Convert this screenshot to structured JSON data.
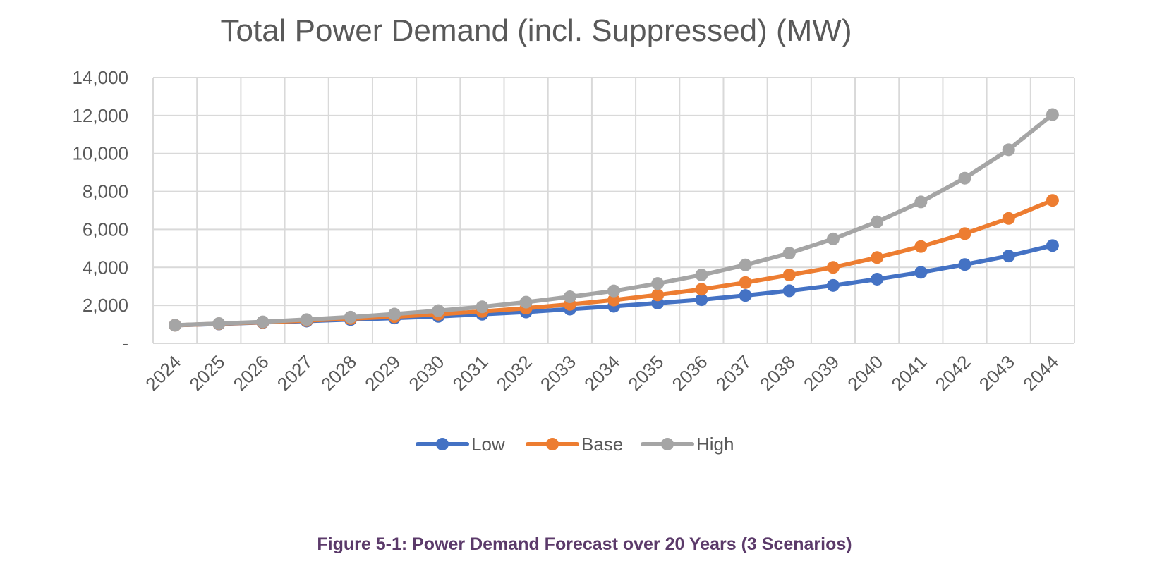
{
  "caption": "Figure 5-1: Power Demand Forecast over 20 Years (3 Scenarios)",
  "chart_data": {
    "type": "line",
    "title": "Total Power Demand (incl. Suppressed) (MW)",
    "xlabel": "",
    "ylabel": "",
    "categories": [
      "2024",
      "2025",
      "2026",
      "2027",
      "2028",
      "2029",
      "2030",
      "2031",
      "2032",
      "2033",
      "2034",
      "2035",
      "2036",
      "2037",
      "2038",
      "2039",
      "2040",
      "2041",
      "2042",
      "2043",
      "2044"
    ],
    "ylim": [
      0,
      14000
    ],
    "y_ticks": [
      0,
      2000,
      4000,
      6000,
      8000,
      10000,
      12000,
      14000
    ],
    "y_tick_labels": [
      "-",
      "2,000",
      "4,000",
      "6,000",
      "8,000",
      "10,000",
      "12,000",
      "14,000"
    ],
    "grid": true,
    "legend_position": "bottom",
    "series": [
      {
        "name": "Low",
        "color": "#4472C4",
        "values": [
          950,
          1020,
          1100,
          1170,
          1250,
          1330,
          1420,
          1530,
          1650,
          1800,
          1950,
          2120,
          2300,
          2520,
          2770,
          3050,
          3380,
          3740,
          4150,
          4600,
          5150
        ]
      },
      {
        "name": "Base",
        "color": "#ED7D31",
        "values": [
          950,
          1030,
          1110,
          1200,
          1300,
          1400,
          1530,
          1680,
          1850,
          2050,
          2280,
          2550,
          2850,
          3200,
          3600,
          4000,
          4520,
          5100,
          5780,
          6580,
          7530
        ]
      },
      {
        "name": "High",
        "color": "#A5A5A5",
        "values": [
          950,
          1040,
          1130,
          1250,
          1380,
          1540,
          1720,
          1920,
          2170,
          2450,
          2760,
          3150,
          3600,
          4130,
          4750,
          5500,
          6400,
          7450,
          8700,
          10200,
          12050
        ]
      }
    ]
  }
}
